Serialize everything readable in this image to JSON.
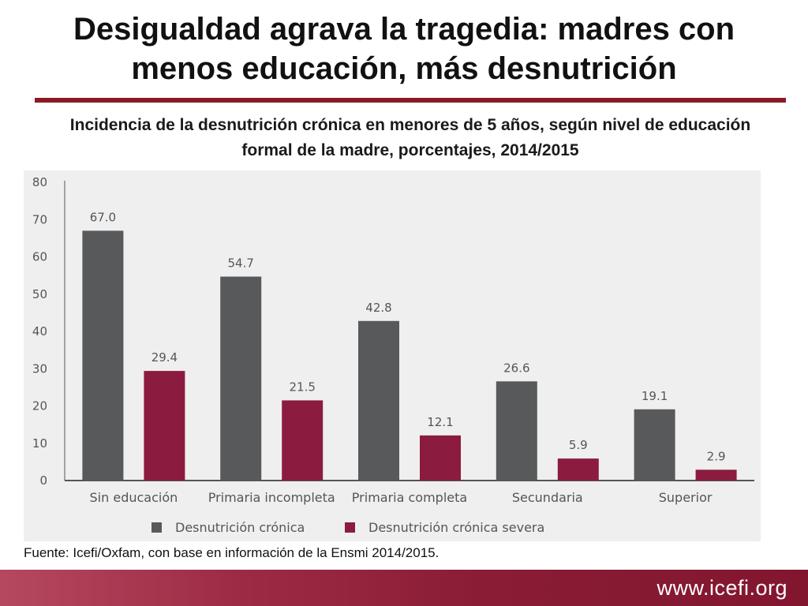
{
  "slide": {
    "title_line1": "Desigualdad agrava la tragedia: madres con",
    "title_line2": "menos educación, más desnutrición",
    "source": "Fuente: Icefi/Oxfam, con base en información de la Ensmi 2014/2015.",
    "footer_url": "www.icefi.org"
  },
  "colors": {
    "title_rule": "#8a1a24",
    "series_cronica": "#58595b",
    "series_severa": "#8b1c3f",
    "footer": "#8a1c36"
  },
  "chart_data": {
    "type": "bar",
    "title": "Incidencia de la desnutrición crónica en menores de 5 años, según nivel de educación formal de la madre, porcentajes, 2014/2015",
    "categories": [
      "Sin educación",
      "Primaria incompleta",
      "Primaria completa",
      "Secundaria",
      "Superior"
    ],
    "series": [
      {
        "name": "Desnutrición crónica",
        "values": [
          67.0,
          54.7,
          42.8,
          26.6,
          19.1
        ],
        "labels": [
          "67.0",
          "54.7",
          "42.8",
          "26.6",
          "19.1"
        ]
      },
      {
        "name": "Desnutrición crónica severa",
        "values": [
          29.4,
          21.5,
          12.1,
          5.9,
          2.9
        ],
        "labels": [
          "29.4",
          "21.5",
          "12.1",
          "5.9",
          "2.9"
        ]
      }
    ],
    "ylim": [
      0,
      80
    ],
    "yticks": [
      "0",
      "10",
      "20",
      "30",
      "40",
      "50",
      "60",
      "70",
      "80"
    ],
    "grid": false,
    "legend": "bottom"
  }
}
